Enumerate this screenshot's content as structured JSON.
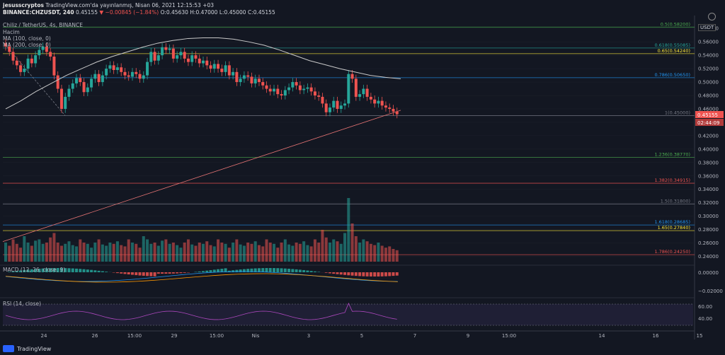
{
  "header": {
    "author": "jesusscryptos",
    "published": "TradingView.com'da yayınlanmış, Nisan 06, 2021 12:15:53 +03",
    "symbol": "BINANCE:CHZUSDT, 240",
    "price": "0.45155",
    "change": "▼ −0.00845 (−1.84%)",
    "ohlc": "O:0.45630 H:0.47000 L:0.45000 C:0.45155",
    "title": "Chiliz / TetherUS, 4s, BINANCE",
    "hacim": "Hacim",
    "ma100": "MA (100, close, 0)",
    "ma200": "MA (200, close, 0)"
  },
  "currency_tag": "USDT",
  "brand": "TradingView",
  "colors": {
    "bg": "#131722",
    "up": "#26a69a",
    "down": "#ef5350",
    "grid": "#1e222d"
  },
  "chart_data": {
    "type": "candlestick",
    "price_axis": {
      "min": 0.23,
      "max": 0.595,
      "ticks": [
        0.24,
        0.26,
        0.28,
        0.3,
        0.32,
        0.34,
        0.36,
        0.38,
        0.4,
        0.42,
        0.44,
        0.46,
        0.48,
        0.5,
        0.52,
        0.54,
        0.56,
        0.58
      ]
    },
    "current_price": "0.45155",
    "countdown": "02:44:09",
    "x_labels": [
      "24",
      "26",
      "15:00",
      "29",
      "15:00",
      "Nis",
      "3",
      "5",
      "7",
      "9",
      "15:00",
      "14",
      "16",
      "15"
    ],
    "fib_levels": [
      {
        "label": "0.5(0.58200)",
        "value": 0.582,
        "color": "#4caf50"
      },
      {
        "label": "0.618(0.55085)",
        "value": 0.55085,
        "color": "#26a69a"
      },
      {
        "label": "0.65(0.54240)",
        "value": 0.5424,
        "color": "#ffeb3b"
      },
      {
        "label": "0.786(0.50650)",
        "value": 0.5065,
        "color": "#2196f3"
      },
      {
        "label": "1(0.45000)",
        "value": 0.45,
        "color": "#787b86"
      },
      {
        "label": "1.236(0.38770)",
        "value": 0.3877,
        "color": "#4caf50"
      },
      {
        "label": "1.382(0.34915)",
        "value": 0.34915,
        "color": "#ef5350"
      },
      {
        "label": "1.5(0.31800)",
        "value": 0.318,
        "color": "#787b86"
      },
      {
        "label": "1.618(0.28685)",
        "value": 0.28685,
        "color": "#2196f3"
      },
      {
        "label": "1.65(0.27840)",
        "value": 0.2784,
        "color": "#ffeb3b"
      },
      {
        "label": "1.786(0.24250)",
        "value": 0.2425,
        "color": "#ef5350"
      }
    ],
    "closes": [
      0.553,
      0.545,
      0.532,
      0.525,
      0.515,
      0.52,
      0.535,
      0.528,
      0.54,
      0.548,
      0.553,
      0.545,
      0.538,
      0.51,
      0.49,
      0.46,
      0.478,
      0.49,
      0.498,
      0.506,
      0.5,
      0.485,
      0.492,
      0.505,
      0.512,
      0.5,
      0.51,
      0.52,
      0.525,
      0.518,
      0.522,
      0.515,
      0.51,
      0.508,
      0.515,
      0.512,
      0.505,
      0.51,
      0.53,
      0.545,
      0.532,
      0.54,
      0.552,
      0.548,
      0.55,
      0.535,
      0.54,
      0.545,
      0.535,
      0.53,
      0.54,
      0.535,
      0.528,
      0.532,
      0.525,
      0.52,
      0.527,
      0.52,
      0.515,
      0.525,
      0.51,
      0.515,
      0.5,
      0.505,
      0.51,
      0.508,
      0.498,
      0.505,
      0.5,
      0.495,
      0.49,
      0.486,
      0.49,
      0.482,
      0.48,
      0.488,
      0.492,
      0.5,
      0.495,
      0.488,
      0.49,
      0.492,
      0.486,
      0.48,
      0.478,
      0.468,
      0.455,
      0.462,
      0.472,
      0.46,
      0.465,
      0.468,
      0.512,
      0.505,
      0.478,
      0.482,
      0.49,
      0.478,
      0.474,
      0.468,
      0.472,
      0.465,
      0.462,
      0.46,
      0.456,
      0.452
    ],
    "ma200": [
      0.46,
      0.472,
      0.486,
      0.498,
      0.51,
      0.52,
      0.53,
      0.538,
      0.545,
      0.552,
      0.558,
      0.562,
      0.565,
      0.566,
      0.566,
      0.564,
      0.56,
      0.555,
      0.548,
      0.54,
      0.532,
      0.526,
      0.52,
      0.515,
      0.51,
      0.507,
      0.505
    ],
    "ma100": [
      0.54,
      0.53,
      0.52,
      0.51,
      0.5,
      0.49
    ],
    "volume": [
      0.3,
      0.25,
      0.35,
      0.28,
      0.22,
      0.4,
      0.3,
      0.25,
      0.33,
      0.35,
      0.28,
      0.3,
      0.38,
      0.45,
      0.3,
      0.25,
      0.28,
      0.32,
      0.26,
      0.24,
      0.35,
      0.3,
      0.28,
      0.22,
      0.3,
      0.35,
      0.27,
      0.25,
      0.3,
      0.28,
      0.32,
      0.26,
      0.24,
      0.35,
      0.3,
      0.28,
      0.22,
      0.4,
      0.35,
      0.28,
      0.3,
      0.25,
      0.33,
      0.35,
      0.28,
      0.3,
      0.26,
      0.22,
      0.3,
      0.35,
      0.27,
      0.25,
      0.3,
      0.28,
      0.32,
      0.26,
      0.24,
      0.35,
      0.3,
      0.28,
      0.22,
      0.3,
      0.35,
      0.27,
      0.25,
      0.3,
      0.28,
      0.32,
      0.26,
      0.24,
      0.35,
      0.3,
      0.28,
      0.22,
      0.3,
      0.35,
      0.27,
      0.25,
      0.3,
      0.28,
      0.32,
      0.26,
      0.24,
      0.35,
      0.3,
      0.5,
      0.38,
      0.3,
      0.35,
      0.32,
      0.28,
      0.45,
      1.0,
      0.6,
      0.4,
      0.3,
      0.35,
      0.32,
      0.28,
      0.26,
      0.3,
      0.25,
      0.22,
      0.24,
      0.2,
      0.18
    ],
    "macd": {
      "label": "MACD (12, 26, close, 9)",
      "ticks": [
        "0.00000",
        "−0.02000"
      ]
    },
    "rsi": {
      "label": "RSI (14, close)",
      "ticks": [
        "60.00",
        "40.00"
      ]
    }
  }
}
